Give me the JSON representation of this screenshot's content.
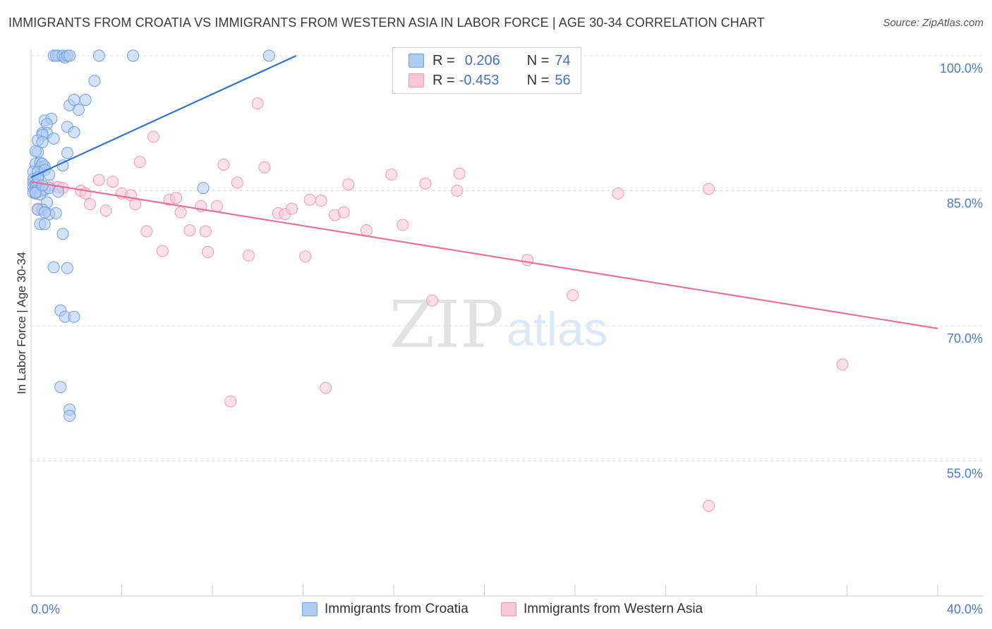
{
  "title": "IMMIGRANTS FROM CROATIA VS IMMIGRANTS FROM WESTERN ASIA IN LABOR FORCE | AGE 30-34 CORRELATION CHART",
  "source": "Source: ZipAtlas.com",
  "watermark": {
    "zip": "ZIP",
    "atlas": "atlas"
  },
  "legend": {
    "r_label": "R =",
    "n_label": "N =",
    "croatia": {
      "r": "0.206",
      "n": "74"
    },
    "western_asia": {
      "r": "-0.453",
      "n": "56"
    }
  },
  "colors": {
    "croatia_fill": "#aecbf2",
    "croatia_stroke": "#6f9fdc",
    "croatia_line": "#2f74cc",
    "wasia_fill": "#f8c6d6",
    "wasia_stroke": "#ee9ab5",
    "wasia_line": "#e8709a",
    "grid": "#dcdcdc",
    "tick_text": "#4a7ccc"
  },
  "chart_data": {
    "type": "scatter",
    "title": "IMMIGRANTS FROM CROATIA VS IMMIGRANTS FROM WESTERN ASIA IN LABOR FORCE | AGE 30-34 CORRELATION CHART",
    "xlabel": "",
    "ylabel": "In Labor Force | Age 30-34",
    "xlim": [
      0,
      40
    ],
    "ylim": [
      40,
      101.5
    ],
    "x_tick_labels": [
      "0.0%",
      "40.0%"
    ],
    "y_ticks": [
      100,
      85,
      70,
      55
    ],
    "y_tick_labels": [
      "100.0%",
      "85.0%",
      "70.0%",
      "55.0%"
    ],
    "grid": true,
    "legend_position": "top-center",
    "series": [
      {
        "name": "Immigrants from Croatia",
        "points": [
          [
            1.0,
            100
          ],
          [
            1.2,
            100
          ],
          [
            1.1,
            100
          ],
          [
            1.4,
            100
          ],
          [
            1.5,
            99.8
          ],
          [
            1.6,
            100
          ],
          [
            1.7,
            100
          ],
          [
            3.0,
            100
          ],
          [
            4.5,
            100
          ],
          [
            10.5,
            100
          ],
          [
            2.8,
            97.2
          ],
          [
            1.7,
            94.5
          ],
          [
            1.9,
            95.1
          ],
          [
            2.4,
            95.1
          ],
          [
            2.1,
            94.0
          ],
          [
            0.6,
            92.8
          ],
          [
            0.9,
            93.0
          ],
          [
            0.7,
            92.4
          ],
          [
            1.6,
            92.1
          ],
          [
            0.5,
            91.4
          ],
          [
            0.7,
            91.4
          ],
          [
            0.5,
            91.2
          ],
          [
            1.9,
            91.5
          ],
          [
            0.3,
            90.6
          ],
          [
            0.5,
            90.4
          ],
          [
            1.0,
            90.8
          ],
          [
            0.3,
            89.3
          ],
          [
            0.2,
            89.4
          ],
          [
            1.6,
            89.2
          ],
          [
            0.2,
            88.0
          ],
          [
            0.4,
            88.1
          ],
          [
            0.4,
            87.6
          ],
          [
            0.6,
            87.7
          ],
          [
            0.5,
            88.0
          ],
          [
            1.4,
            87.8
          ],
          [
            0.1,
            87.1
          ],
          [
            0.3,
            87.1
          ],
          [
            0.6,
            87.3
          ],
          [
            0.1,
            86.3
          ],
          [
            0.2,
            86.1
          ],
          [
            0.3,
            86.2
          ],
          [
            0.1,
            85.9
          ],
          [
            0.2,
            85.7
          ],
          [
            0.1,
            85.3
          ],
          [
            0.2,
            85.3
          ],
          [
            0.6,
            85.1
          ],
          [
            0.2,
            85.0
          ],
          [
            0.8,
            85.3
          ],
          [
            0.1,
            84.8
          ],
          [
            0.2,
            84.7
          ],
          [
            1.2,
            84.9
          ],
          [
            0.4,
            84.6
          ],
          [
            0.2,
            84.8
          ],
          [
            7.6,
            85.3
          ],
          [
            0.7,
            83.7
          ],
          [
            0.5,
            82.9
          ],
          [
            0.3,
            82.9
          ],
          [
            0.8,
            82.4
          ],
          [
            1.1,
            82.5
          ],
          [
            0.6,
            82.6
          ],
          [
            0.4,
            81.3
          ],
          [
            0.6,
            81.3
          ],
          [
            1.4,
            80.2
          ],
          [
            1.0,
            76.5
          ],
          [
            1.6,
            76.4
          ],
          [
            1.3,
            71.7
          ],
          [
            1.5,
            71.0
          ],
          [
            1.9,
            71.0
          ],
          [
            1.3,
            63.2
          ],
          [
            1.7,
            60.7
          ],
          [
            1.7,
            60.0
          ],
          [
            0.3,
            86.5
          ],
          [
            0.8,
            86.8
          ],
          [
            0.5,
            85.6
          ]
        ],
        "trend": {
          "x": [
            0,
            11.7
          ],
          "y": [
            86.5,
            100
          ]
        }
      },
      {
        "name": "Immigrants from Western Asia",
        "points": [
          [
            0.3,
            83.0
          ],
          [
            0.5,
            85.0
          ],
          [
            0.8,
            85.6
          ],
          [
            1.2,
            85.4
          ],
          [
            1.4,
            85.3
          ],
          [
            2.2,
            85.0
          ],
          [
            2.4,
            84.7
          ],
          [
            2.6,
            83.5
          ],
          [
            3.0,
            86.2
          ],
          [
            3.3,
            82.8
          ],
          [
            3.6,
            86.0
          ],
          [
            4.0,
            84.7
          ],
          [
            4.4,
            84.5
          ],
          [
            4.6,
            83.5
          ],
          [
            4.8,
            88.2
          ],
          [
            5.1,
            80.5
          ],
          [
            5.4,
            91.0
          ],
          [
            5.8,
            78.3
          ],
          [
            6.1,
            84.0
          ],
          [
            6.4,
            84.2
          ],
          [
            6.6,
            82.6
          ],
          [
            7.0,
            80.6
          ],
          [
            7.5,
            83.3
          ],
          [
            7.7,
            80.5
          ],
          [
            7.8,
            78.2
          ],
          [
            8.2,
            83.3
          ],
          [
            8.5,
            87.9
          ],
          [
            8.8,
            61.6
          ],
          [
            9.1,
            85.9
          ],
          [
            9.6,
            77.8
          ],
          [
            10.0,
            94.7
          ],
          [
            10.3,
            87.6
          ],
          [
            10.9,
            82.5
          ],
          [
            11.2,
            82.4
          ],
          [
            11.5,
            83.0
          ],
          [
            12.1,
            77.7
          ],
          [
            12.3,
            84.0
          ],
          [
            12.8,
            83.9
          ],
          [
            13.0,
            63.1
          ],
          [
            13.4,
            82.3
          ],
          [
            13.8,
            82.6
          ],
          [
            14.0,
            85.7
          ],
          [
            14.8,
            80.6
          ],
          [
            15.9,
            86.8
          ],
          [
            16.4,
            81.2
          ],
          [
            17.4,
            85.8
          ],
          [
            17.7,
            72.8
          ],
          [
            18.8,
            85.0
          ],
          [
            18.9,
            86.9
          ],
          [
            21.9,
            77.3
          ],
          [
            23.9,
            73.4
          ],
          [
            25.9,
            84.7
          ],
          [
            29.9,
            50.0
          ],
          [
            29.9,
            85.2
          ],
          [
            35.8,
            65.7
          ],
          [
            0.4,
            84.9
          ]
        ],
        "trend": {
          "x": [
            0,
            40
          ],
          "y": [
            86.0,
            69.7
          ]
        }
      }
    ]
  },
  "bottom_legend": {
    "croatia": "Immigrants from Croatia",
    "western_asia": "Immigrants from Western Asia"
  }
}
